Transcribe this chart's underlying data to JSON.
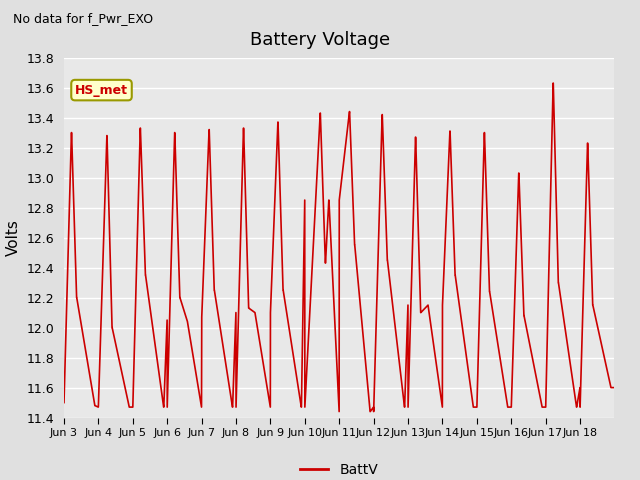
{
  "title": "Battery Voltage",
  "ylabel": "Volts",
  "note": "No data for f_Pwr_EXO",
  "legend_label": "BattV",
  "legend_color": "#cc0000",
  "line_color": "#cc0000",
  "ylim": [
    11.4,
    13.8
  ],
  "yticks": [
    11.4,
    11.6,
    11.8,
    12.0,
    12.2,
    12.4,
    12.6,
    12.8,
    13.0,
    13.2,
    13.4,
    13.6,
    13.8
  ],
  "xtick_labels": [
    "Jun 3",
    "Jun 4",
    "Jun 5",
    "Jun 6",
    "Jun 7",
    "Jun 8",
    "Jun 9",
    "Jun 10",
    "Jun 11",
    "Jun 12",
    "Jun 13",
    "Jun 14",
    "Jun 15",
    "Jun 16",
    "Jun 17",
    "Jun 18"
  ],
  "bg_color": "#e0e0e0",
  "plot_bg_color": "#e8e8e8",
  "hs_met_label": "HS_met",
  "hs_met_bg": "#ffffcc",
  "hs_met_fg": "#cc0000",
  "hs_met_border": "#999900",
  "num_days": 16,
  "day_params": [
    [
      13.3,
      11.48,
      12.2,
      0.22,
      0.9
    ],
    [
      13.28,
      11.47,
      12.0,
      0.25,
      0.9
    ],
    [
      13.33,
      11.47,
      12.35,
      0.22,
      0.9
    ],
    [
      13.3,
      12.05,
      12.2,
      0.22,
      0.58
    ],
    [
      13.32,
      11.47,
      12.25,
      0.22,
      0.9
    ],
    [
      13.33,
      12.1,
      12.13,
      0.22,
      0.55
    ],
    [
      13.37,
      11.47,
      12.25,
      0.22,
      0.9
    ],
    [
      13.43,
      12.85,
      12.43,
      0.45,
      0.7
    ],
    [
      13.44,
      11.44,
      12.55,
      0.3,
      0.9
    ],
    [
      13.42,
      11.47,
      12.45,
      0.25,
      0.9
    ],
    [
      13.27,
      12.15,
      12.1,
      0.22,
      0.58
    ],
    [
      13.31,
      11.47,
      12.35,
      0.22,
      0.9
    ],
    [
      13.3,
      11.47,
      12.24,
      0.22,
      0.9
    ],
    [
      13.03,
      11.47,
      12.08,
      0.22,
      0.9
    ],
    [
      13.63,
      11.47,
      12.3,
      0.22,
      0.9
    ],
    [
      13.23,
      11.6,
      12.15,
      0.22,
      0.9
    ]
  ]
}
